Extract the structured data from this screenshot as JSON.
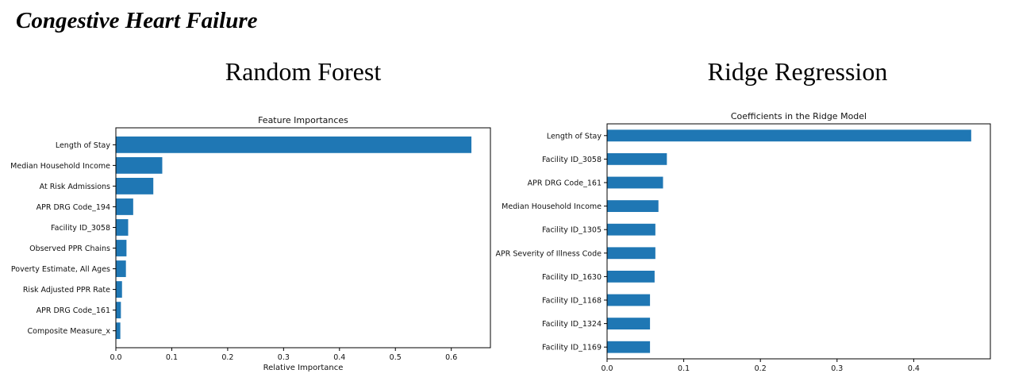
{
  "page": {
    "title": "Congestive Heart Failure",
    "panel_left_heading": "Random Forest",
    "panel_right_heading": "Ridge Regression"
  },
  "chart_data": [
    {
      "type": "bar",
      "orientation": "horizontal",
      "title": "Feature Importances",
      "xlabel": "Relative Importance",
      "ylabel": "",
      "categories": [
        "Length of Stay",
        "Median Household Income",
        "At Risk Admissions",
        "APR DRG Code_194",
        "Facility ID_3058",
        "Observed PPR Chains",
        "Poverty Estimate, All Ages",
        "Risk Adjusted PPR Rate",
        "APR DRG Code_161",
        "Composite Measure_x"
      ],
      "values": [
        0.636,
        0.083,
        0.067,
        0.031,
        0.022,
        0.019,
        0.018,
        0.011,
        0.009,
        0.008
      ],
      "xlim": [
        0,
        0.67
      ],
      "xticks": [
        0.0,
        0.1,
        0.2,
        0.3,
        0.4,
        0.5,
        0.6
      ],
      "xtick_labels": [
        "0.0",
        "0.1",
        "0.2",
        "0.3",
        "0.4",
        "0.5",
        "0.6"
      ],
      "grid": false,
      "color": "#1f77b4"
    },
    {
      "type": "bar",
      "orientation": "horizontal",
      "title": "Coefficients in the Ridge Model",
      "xlabel": "",
      "ylabel": "",
      "categories": [
        "Length of Stay",
        "Facility ID_3058",
        "APR DRG Code_161",
        "Median Household Income",
        "Facility ID_1305",
        "APR Severity of Illness Code",
        "Facility ID_1630",
        "Facility ID_1168",
        "Facility ID_1324",
        "Facility ID_1169"
      ],
      "values": [
        0.475,
        0.078,
        0.073,
        0.067,
        0.063,
        0.063,
        0.062,
        0.056,
        0.056,
        0.056
      ],
      "xlim": [
        0,
        0.5
      ],
      "xticks": [
        0.0,
        0.1,
        0.2,
        0.3,
        0.4
      ],
      "xtick_labels": [
        "0.0",
        "0.1",
        "0.2",
        "0.3",
        "0.4"
      ],
      "grid": false,
      "color": "#1f77b4"
    }
  ]
}
